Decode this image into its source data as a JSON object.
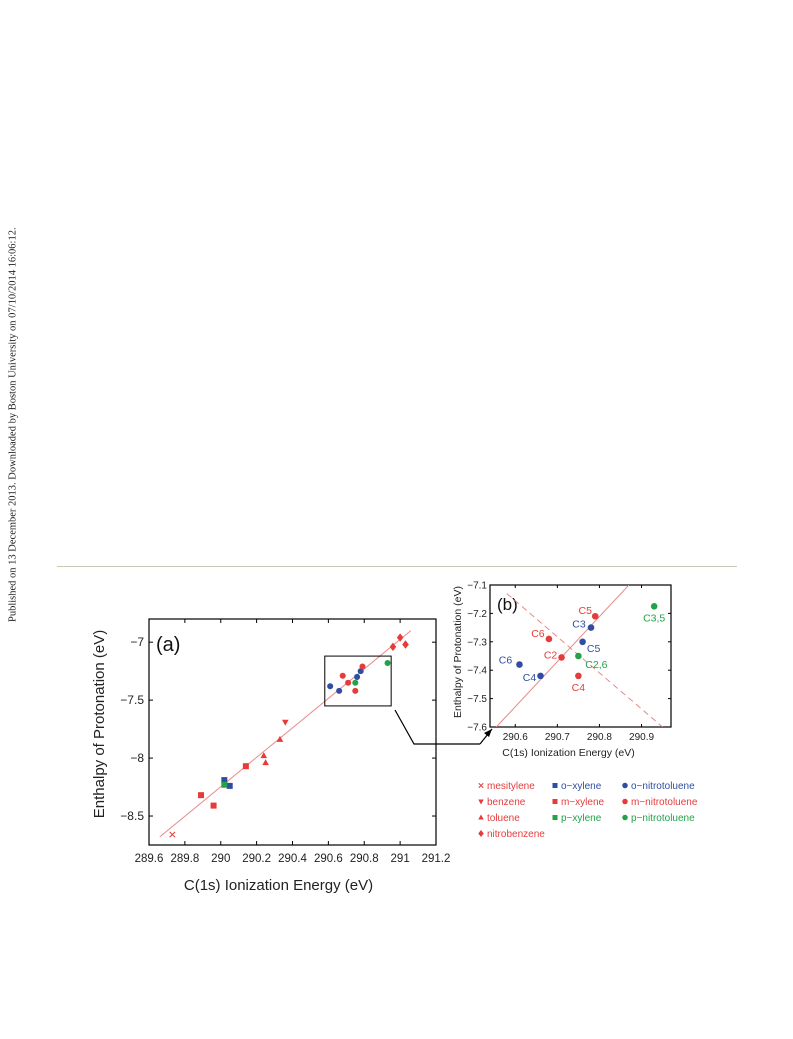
{
  "page": {
    "side_note": "Published on 13 December 2013. Downloaded by Boston University on 07/10/2014 16:06:12."
  },
  "legend": [
    {
      "label": "mesitylene",
      "marker": "x",
      "color": "#e63b3b"
    },
    {
      "label": "benzene",
      "marker": "tri-down",
      "color": "#e63b3b"
    },
    {
      "label": "toluene",
      "marker": "tri-up",
      "color": "#e63b3b"
    },
    {
      "label": "nitrobenzene",
      "marker": "diamond",
      "color": "#e63b3b"
    },
    {
      "label": "o−xylene",
      "marker": "square",
      "color": "#2f4ea3"
    },
    {
      "label": "m−xylene",
      "marker": "square",
      "color": "#e63b3b"
    },
    {
      "label": "p−xylene",
      "marker": "square",
      "color": "#22a34a"
    },
    {
      "label": "o−nitrotoluene",
      "marker": "circle",
      "color": "#2f4ea3"
    },
    {
      "label": "m−nitrotoluene",
      "marker": "circle",
      "color": "#e63b3b"
    },
    {
      "label": "p−nitrotoluene",
      "marker": "circle",
      "color": "#22a34a"
    }
  ],
  "chart_data": [
    {
      "type": "scatter",
      "panel_label": "(a)",
      "xlabel": "C(1s) Ionization Energy (eV)",
      "ylabel": "Enthalpy of Protonation (eV)",
      "xlim": [
        289.6,
        291.2
      ],
      "ylim": [
        -8.75,
        -6.8
      ],
      "xticks": [
        289.6,
        289.8,
        290,
        290.2,
        290.4,
        290.6,
        290.8,
        291,
        291.2
      ],
      "xtick_labels": [
        "289.6",
        "289.8",
        "290",
        "290.2",
        "290.4",
        "290.6",
        "290.8",
        "291",
        "291.2"
      ],
      "yticks": [
        -8.5,
        -8,
        -7.5,
        -7
      ],
      "ytick_labels": [
        "−8.5",
        "−8",
        "−7.5",
        "−7"
      ],
      "fit_line": {
        "x": [
          289.66,
          291.06
        ],
        "y": [
          -8.68,
          -6.9
        ],
        "color": "#e88a8a"
      },
      "inset_box": {
        "x": [
          290.58,
          290.95
        ],
        "y": [
          -7.55,
          -7.12
        ]
      },
      "series": [
        {
          "name": "mesitylene",
          "marker": "x",
          "color": "#e63b3b",
          "points": [
            [
              289.73,
              -8.66
            ]
          ]
        },
        {
          "name": "benzene",
          "marker": "tri-down",
          "color": "#e63b3b",
          "points": [
            [
              290.36,
              -7.69
            ]
          ]
        },
        {
          "name": "toluene",
          "marker": "tri-up",
          "color": "#e63b3b",
          "points": [
            [
              290.24,
              -7.98
            ],
            [
              290.25,
              -8.04
            ],
            [
              290.33,
              -7.84
            ]
          ]
        },
        {
          "name": "nitrobenzene",
          "marker": "diamond",
          "color": "#e63b3b",
          "points": [
            [
              290.96,
              -7.04
            ],
            [
              291.0,
              -6.96
            ],
            [
              291.03,
              -7.02
            ]
          ]
        },
        {
          "name": "o−xylene",
          "marker": "square",
          "color": "#2f4ea3",
          "points": [
            [
              290.02,
              -8.19
            ],
            [
              290.05,
              -8.24
            ]
          ]
        },
        {
          "name": "m−xylene",
          "marker": "square",
          "color": "#e63b3b",
          "points": [
            [
              289.89,
              -8.32
            ],
            [
              289.96,
              -8.41
            ],
            [
              290.14,
              -8.07
            ]
          ]
        },
        {
          "name": "p−xylene",
          "marker": "square",
          "color": "#22a34a",
          "points": [
            [
              290.02,
              -8.23
            ]
          ]
        },
        {
          "name": "o−nitrotoluene",
          "marker": "circle",
          "color": "#2f4ea3",
          "points": [
            [
              290.61,
              -7.38
            ],
            [
              290.66,
              -7.42
            ],
            [
              290.76,
              -7.3
            ],
            [
              290.78,
              -7.25
            ]
          ]
        },
        {
          "name": "m−nitrotoluene",
          "marker": "circle",
          "color": "#e63b3b",
          "points": [
            [
              290.68,
              -7.29
            ],
            [
              290.71,
              -7.35
            ],
            [
              290.75,
              -7.42
            ],
            [
              290.79,
              -7.21
            ]
          ]
        },
        {
          "name": "p−nitrotoluene",
          "marker": "circle",
          "color": "#22a34a",
          "points": [
            [
              290.75,
              -7.35
            ],
            [
              290.93,
              -7.18
            ]
          ]
        }
      ]
    },
    {
      "type": "scatter",
      "panel_label": "(b)",
      "xlabel": "C(1s) Ionization Energy (eV)",
      "ylabel": "Enthalpy of Protonation (eV)",
      "xlim": [
        290.54,
        290.97
      ],
      "ylim": [
        -7.6,
        -7.1
      ],
      "xticks": [
        290.6,
        290.7,
        290.8,
        290.9
      ],
      "xtick_labels": [
        "290.6",
        "290.7",
        "290.8",
        "290.9"
      ],
      "yticks": [
        -7.6,
        -7.5,
        -7.4,
        -7.3,
        -7.2,
        -7.1
      ],
      "ytick_labels": [
        "−7.6",
        "−7.5",
        "−7.4",
        "−7.3",
        "−7.2",
        "−7.1"
      ],
      "fit_line": {
        "x": [
          290.555,
          290.87
        ],
        "y": [
          -7.6,
          -7.1
        ],
        "color": "#e88a8a"
      },
      "dashed_line": {
        "x": [
          290.58,
          290.95
        ],
        "y": [
          -7.13,
          -7.6
        ],
        "color": "#e88a8a"
      },
      "series": [
        {
          "name": "o−nitrotoluene",
          "marker": "circle",
          "color": "#2f4ea3",
          "points": [
            [
              290.61,
              -7.38
            ],
            [
              290.66,
              -7.42
            ],
            [
              290.76,
              -7.3
            ],
            [
              290.78,
              -7.25
            ]
          ],
          "point_labels": [
            "C6",
            "C4",
            "C5",
            "C3"
          ]
        },
        {
          "name": "m−nitrotoluene",
          "marker": "circle",
          "color": "#e63b3b",
          "points": [
            [
              290.68,
              -7.29
            ],
            [
              290.71,
              -7.355
            ],
            [
              290.75,
              -7.42
            ],
            [
              290.79,
              -7.21
            ]
          ],
          "point_labels": [
            "C6",
            "C2",
            "C4",
            "C5"
          ]
        },
        {
          "name": "p−nitrotoluene",
          "marker": "circle",
          "color": "#22a34a",
          "points": [
            [
              290.75,
              -7.35
            ],
            [
              290.93,
              -7.175
            ]
          ],
          "point_labels": [
            "C2,6",
            "C3,5"
          ]
        }
      ]
    }
  ]
}
